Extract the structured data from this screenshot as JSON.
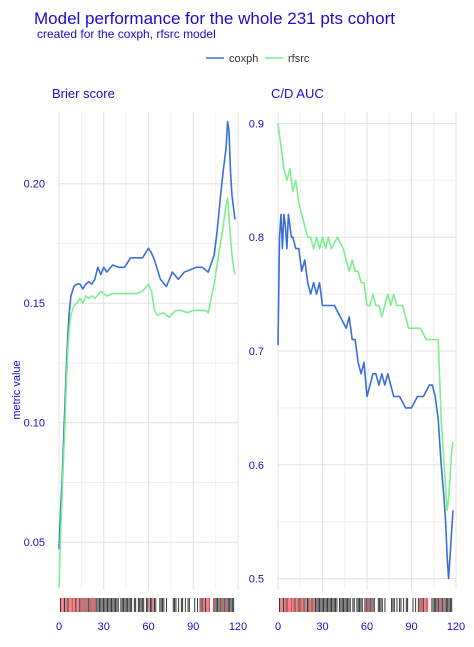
{
  "chart_data": {
    "type": "line",
    "title": "Model performance for the whole 231 pts cohort",
    "subtitle": "created for the coxph, rfsrc model",
    "ylabel": "metric value",
    "legend": {
      "position": "top",
      "entries": [
        "coxph",
        "rfsrc"
      ]
    },
    "colors": {
      "coxph": "#3a6fd8",
      "rfsrc": "#7cf08e",
      "text": "#1a0dcc",
      "rug_event": "#e8333a",
      "rug_censored": "#222222"
    },
    "grid": true,
    "panels": [
      {
        "title": "Brier score",
        "xlim": [
          0,
          120
        ],
        "ylim": [
          0.03,
          0.23
        ],
        "xticks": [
          0,
          30,
          60,
          90,
          120
        ],
        "yticks": [
          0.05,
          0.1,
          0.15,
          0.2
        ],
        "ytick_labels": [
          "0.05",
          "0.10",
          "0.15",
          "0.20"
        ],
        "series": [
          {
            "name": "coxph",
            "x": [
              0,
              1,
              2,
              3,
              4,
              5,
              6,
              7,
              8,
              10,
              12,
              14,
              16,
              18,
              20,
              22,
              24,
              26,
              28,
              30,
              32,
              36,
              40,
              44,
              48,
              52,
              56,
              58,
              60,
              62,
              64,
              68,
              72,
              76,
              80,
              84,
              88,
              92,
              96,
              100,
              104,
              106,
              108,
              110,
              112,
              113,
              114,
              115,
              116,
              117,
              118
            ],
            "y": [
              0.047,
              0.062,
              0.075,
              0.092,
              0.108,
              0.125,
              0.138,
              0.147,
              0.153,
              0.157,
              0.158,
              0.158,
              0.156,
              0.158,
              0.159,
              0.158,
              0.16,
              0.165,
              0.162,
              0.165,
              0.163,
              0.166,
              0.165,
              0.165,
              0.169,
              0.169,
              0.169,
              0.171,
              0.173,
              0.171,
              0.168,
              0.16,
              0.157,
              0.163,
              0.16,
              0.163,
              0.164,
              0.165,
              0.165,
              0.163,
              0.17,
              0.18,
              0.193,
              0.205,
              0.215,
              0.226,
              0.222,
              0.205,
              0.195,
              0.19,
              0.185
            ]
          },
          {
            "name": "rfsrc",
            "x": [
              0,
              1,
              2,
              3,
              4,
              5,
              6,
              7,
              8,
              10,
              12,
              14,
              16,
              18,
              20,
              22,
              24,
              28,
              32,
              36,
              40,
              44,
              48,
              52,
              56,
              60,
              62,
              64,
              66,
              70,
              74,
              78,
              82,
              86,
              90,
              94,
              98,
              100,
              102,
              104,
              106,
              108,
              110,
              112,
              113,
              114,
              115,
              116,
              117,
              118
            ],
            "y": [
              0.031,
              0.052,
              0.068,
              0.085,
              0.1,
              0.118,
              0.132,
              0.14,
              0.145,
              0.149,
              0.15,
              0.152,
              0.15,
              0.153,
              0.152,
              0.153,
              0.152,
              0.155,
              0.153,
              0.154,
              0.154,
              0.154,
              0.154,
              0.154,
              0.155,
              0.158,
              0.155,
              0.147,
              0.145,
              0.146,
              0.144,
              0.147,
              0.147,
              0.146,
              0.147,
              0.147,
              0.147,
              0.146,
              0.152,
              0.158,
              0.166,
              0.174,
              0.182,
              0.191,
              0.194,
              0.186,
              0.178,
              0.17,
              0.165,
              0.162
            ]
          }
        ]
      },
      {
        "title": "C/D AUC",
        "xlim": [
          0,
          120
        ],
        "ylim": [
          0.49,
          0.91
        ],
        "xticks": [
          0,
          30,
          60,
          90,
          120
        ],
        "yticks": [
          0.5,
          0.6,
          0.7,
          0.8,
          0.9
        ],
        "ytick_labels": [
          "0.5",
          "0.6",
          "0.7",
          "0.8",
          "0.9"
        ],
        "series": [
          {
            "name": "coxph",
            "x": [
              0,
              1,
              2,
              3,
              4,
              5,
              6,
              7,
              8,
              9,
              10,
              12,
              14,
              16,
              18,
              20,
              22,
              24,
              26,
              28,
              30,
              34,
              38,
              42,
              46,
              48,
              50,
              52,
              54,
              56,
              58,
              60,
              62,
              64,
              66,
              68,
              70,
              72,
              74,
              76,
              78,
              82,
              86,
              90,
              94,
              98,
              102,
              104,
              106,
              108,
              110,
              112,
              113,
              114,
              115,
              116,
              117,
              118
            ],
            "y": [
              0.705,
              0.8,
              0.82,
              0.79,
              0.82,
              0.81,
              0.79,
              0.82,
              0.81,
              0.8,
              0.8,
              0.79,
              0.79,
              0.77,
              0.78,
              0.76,
              0.75,
              0.76,
              0.75,
              0.76,
              0.74,
              0.74,
              0.74,
              0.73,
              0.72,
              0.73,
              0.71,
              0.71,
              0.69,
              0.68,
              0.69,
              0.66,
              0.67,
              0.68,
              0.68,
              0.67,
              0.68,
              0.67,
              0.68,
              0.67,
              0.66,
              0.66,
              0.65,
              0.65,
              0.66,
              0.66,
              0.67,
              0.67,
              0.66,
              0.64,
              0.6,
              0.57,
              0.55,
              0.52,
              0.5,
              0.52,
              0.54,
              0.56
            ]
          },
          {
            "name": "rfsrc",
            "x": [
              0,
              2,
              4,
              6,
              8,
              10,
              12,
              14,
              16,
              18,
              20,
              22,
              24,
              26,
              28,
              30,
              32,
              34,
              36,
              40,
              44,
              46,
              48,
              50,
              52,
              54,
              56,
              58,
              60,
              62,
              64,
              66,
              68,
              70,
              72,
              74,
              76,
              78,
              80,
              84,
              88,
              92,
              96,
              100,
              104,
              108,
              110,
              112,
              113,
              114,
              115,
              116,
              117,
              118
            ],
            "y": [
              0.9,
              0.88,
              0.86,
              0.85,
              0.86,
              0.84,
              0.85,
              0.83,
              0.82,
              0.81,
              0.8,
              0.8,
              0.79,
              0.8,
              0.79,
              0.8,
              0.79,
              0.8,
              0.79,
              0.8,
              0.79,
              0.78,
              0.77,
              0.78,
              0.77,
              0.77,
              0.76,
              0.76,
              0.74,
              0.74,
              0.75,
              0.74,
              0.74,
              0.73,
              0.74,
              0.75,
              0.74,
              0.75,
              0.74,
              0.74,
              0.72,
              0.72,
              0.72,
              0.71,
              0.71,
              0.71,
              0.64,
              0.6,
              0.58,
              0.56,
              0.57,
              0.59,
              0.61,
              0.62
            ]
          }
        ]
      }
    ]
  }
}
